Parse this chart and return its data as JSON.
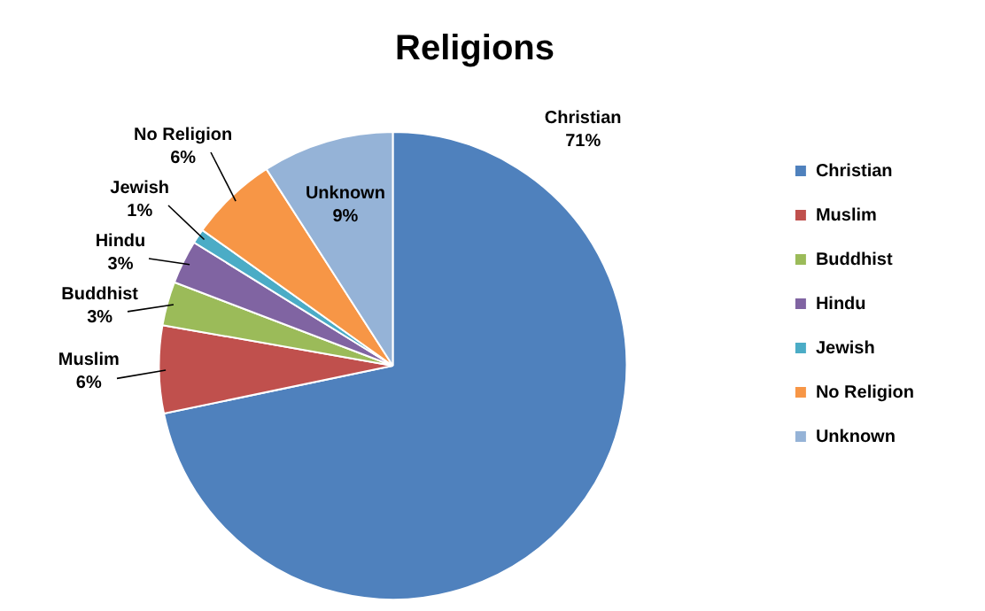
{
  "chart_data": {
    "type": "pie",
    "title": "Religions",
    "categories": [
      "Christian",
      "Muslim",
      "Buddhist",
      "Hindu",
      "Jewish",
      "No Religion",
      "Unknown"
    ],
    "values": [
      71,
      6,
      3,
      3,
      1,
      6,
      9
    ],
    "colors": [
      "#4f81bd",
      "#c0504d",
      "#9bbb59",
      "#8064a2",
      "#4bacc6",
      "#f79646",
      "#95b3d7"
    ],
    "data_labels": true,
    "value_labels": [
      "71%",
      "6%",
      "3%",
      "3%",
      "1%",
      "6%",
      "9%"
    ],
    "legend": "right"
  }
}
